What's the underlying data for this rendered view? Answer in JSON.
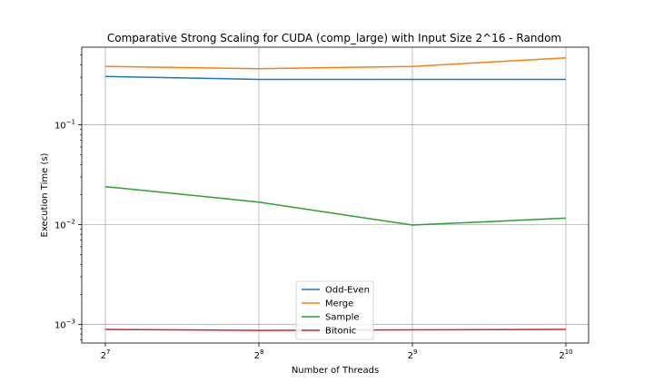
{
  "chart_data": {
    "type": "line",
    "title": "Comparative Strong Scaling for CUDA (comp_large) with Input Size 2^16 - Random",
    "xlabel": "Number of Threads",
    "ylabel": "Execution Time (s)",
    "x": [
      128,
      256,
      512,
      1024
    ],
    "x_scale": "log2",
    "x_tick_labels": [
      {
        "base": "2",
        "exp": "7"
      },
      {
        "base": "2",
        "exp": "8"
      },
      {
        "base": "2",
        "exp": "9"
      },
      {
        "base": "2",
        "exp": "10"
      }
    ],
    "y_scale": "log10",
    "ylim": [
      0.00065,
      0.6
    ],
    "y_ticks": [
      0.001,
      0.01,
      0.1
    ],
    "y_tick_labels": [
      {
        "base": "10",
        "exp": "−3"
      },
      {
        "base": "10",
        "exp": "−2"
      },
      {
        "base": "10",
        "exp": "−1"
      }
    ],
    "grid": true,
    "legend_position": "lower-center",
    "series": [
      {
        "name": "Odd-Even",
        "color": "#1f77b4",
        "values": [
          0.305,
          0.285,
          0.285,
          0.285
        ]
      },
      {
        "name": "Merge",
        "color": "#ff7f0e",
        "values": [
          0.385,
          0.365,
          0.385,
          0.47
        ]
      },
      {
        "name": "Sample",
        "color": "#2ca02c",
        "values": [
          0.024,
          0.0168,
          0.0099,
          0.0116
        ]
      },
      {
        "name": "Bitonic",
        "color": "#d62728",
        "values": [
          0.00089,
          0.00087,
          0.00088,
          0.00089
        ]
      }
    ]
  }
}
